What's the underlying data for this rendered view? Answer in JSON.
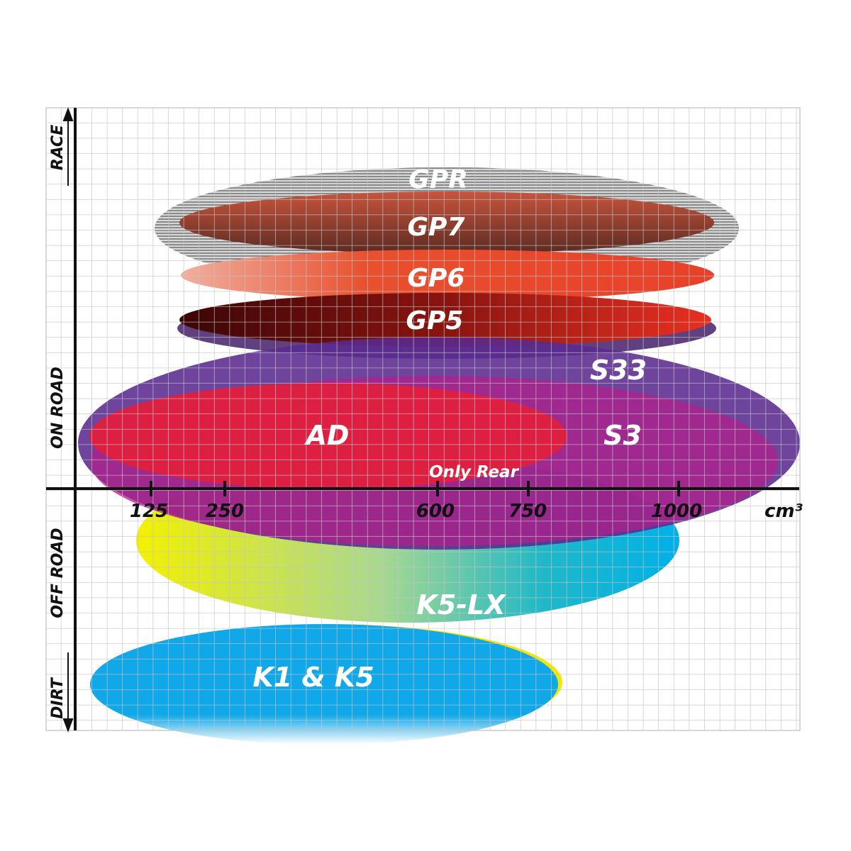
{
  "axis": {
    "x_ticks": [
      "125",
      "250",
      "600",
      "750",
      "1000"
    ],
    "x_unit": "cm³",
    "y_zones": [
      "RACE",
      "ON ROAD",
      "OFF ROAD",
      "DIRT"
    ]
  },
  "products": [
    {
      "name": "GPR",
      "color": "#9a9a9a"
    },
    {
      "name": "GP7",
      "color": "#8a3a2a"
    },
    {
      "name": "GP6",
      "color": "#e8402a"
    },
    {
      "name": "GP5",
      "color": "#a01810"
    },
    {
      "name": "S33",
      "color": "#5a2a90"
    },
    {
      "name": "S3",
      "color": "#a0208a"
    },
    {
      "name": "AD",
      "color": "#e0203e"
    },
    {
      "name": "K5-LX",
      "color": "#10b8d8"
    },
    {
      "name": "K1 & K5",
      "color": "#10a8e8"
    }
  ],
  "notes": {
    "only_rear": "Only Rear"
  }
}
